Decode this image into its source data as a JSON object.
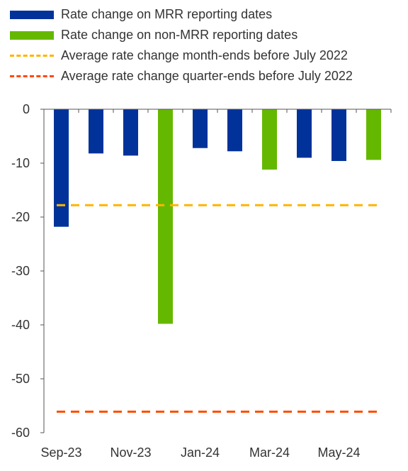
{
  "chart_data": {
    "type": "bar",
    "title": "",
    "xlabel": "",
    "ylabel": "",
    "ylim": [
      -60,
      0
    ],
    "yticks": [
      0,
      -10,
      -20,
      -30,
      -40,
      -50,
      -60
    ],
    "categories": [
      "Sep-23",
      "Oct-23",
      "Nov-23",
      "Dec-23",
      "Jan-24",
      "Feb-24",
      "Mar-24",
      "Apr-24",
      "May-24",
      "Jun-24"
    ],
    "x_tick_labels": [
      "Sep-23",
      "",
      "Nov-23",
      "",
      "Jan-24",
      "",
      "Mar-24",
      "",
      "May-24",
      ""
    ],
    "values": [
      -21.8,
      -8.2,
      -8.6,
      -39.8,
      -7.2,
      -7.8,
      -11.2,
      -9.0,
      -9.6,
      -9.4
    ],
    "bar_types": [
      "mrr",
      "mrr",
      "mrr",
      "non_mrr",
      "mrr",
      "mrr",
      "non_mrr",
      "mrr",
      "mrr",
      "non_mrr"
    ],
    "series": [
      {
        "key": "mrr",
        "name": "Rate change on MRR reporting dates",
        "color": "#003299"
      },
      {
        "key": "non_mrr",
        "name": "Rate change on non-MRR reporting dates",
        "color": "#65b800"
      }
    ],
    "reference_lines": [
      {
        "name": "Average rate change month-ends before July 2022",
        "value": -17.8,
        "color": "#ffb400"
      },
      {
        "name": "Average rate change quarter-ends before July 2022",
        "value": -56.1,
        "color": "#ff4b00"
      }
    ],
    "grid": false,
    "legend_position": "top"
  }
}
